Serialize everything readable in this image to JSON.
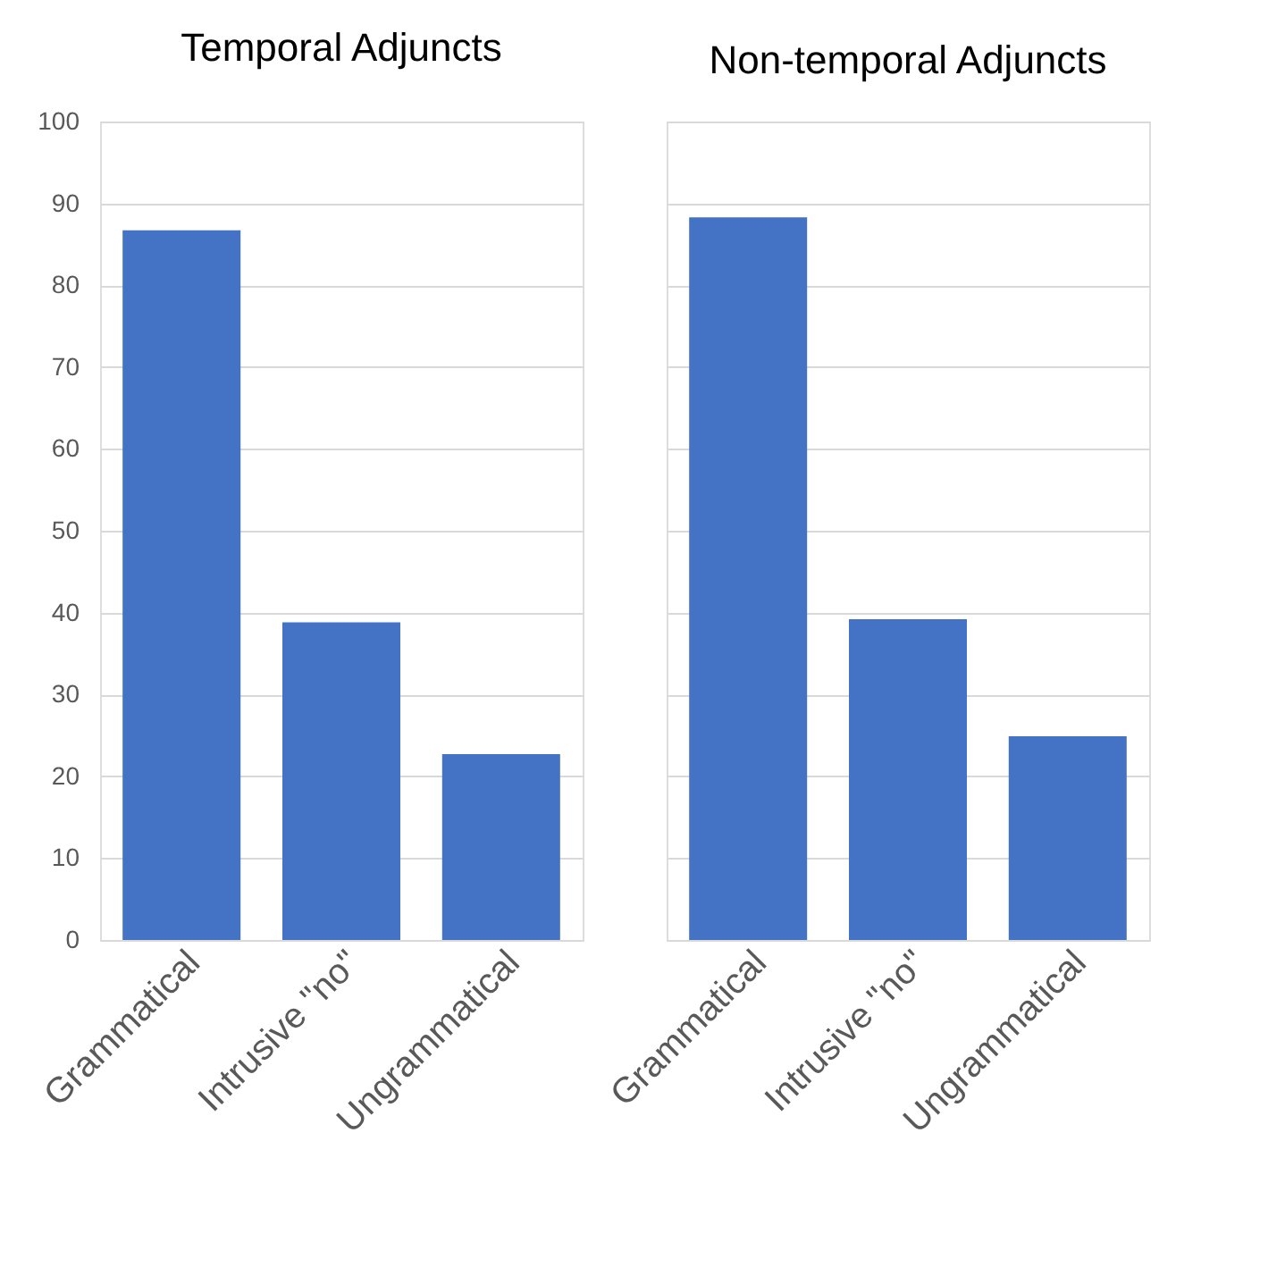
{
  "chart_data": [
    {
      "type": "bar",
      "title": "Temporal Adjuncts",
      "categories": [
        "Grammatical",
        "Intrusive \"no\"",
        "Ungrammatical"
      ],
      "values": [
        86.7,
        38.8,
        22.7
      ],
      "color": "#4472c4",
      "ylim": [
        0,
        100
      ],
      "yticks": [
        0,
        10,
        20,
        30,
        40,
        50,
        60,
        70,
        80,
        90,
        100
      ],
      "grid": "y"
    },
    {
      "type": "bar",
      "title": "Non-temporal Adjuncts",
      "categories": [
        "Grammatical",
        "Intrusive \"no\"",
        "Ungrammatical"
      ],
      "values": [
        88.3,
        39.2,
        24.9
      ],
      "color": "#4472c4",
      "ylim": [
        0,
        100
      ],
      "yticks": [
        0,
        10,
        20,
        30,
        40,
        50,
        60,
        70,
        80,
        90,
        100
      ],
      "grid": "y",
      "tick_labels": "x"
    }
  ]
}
